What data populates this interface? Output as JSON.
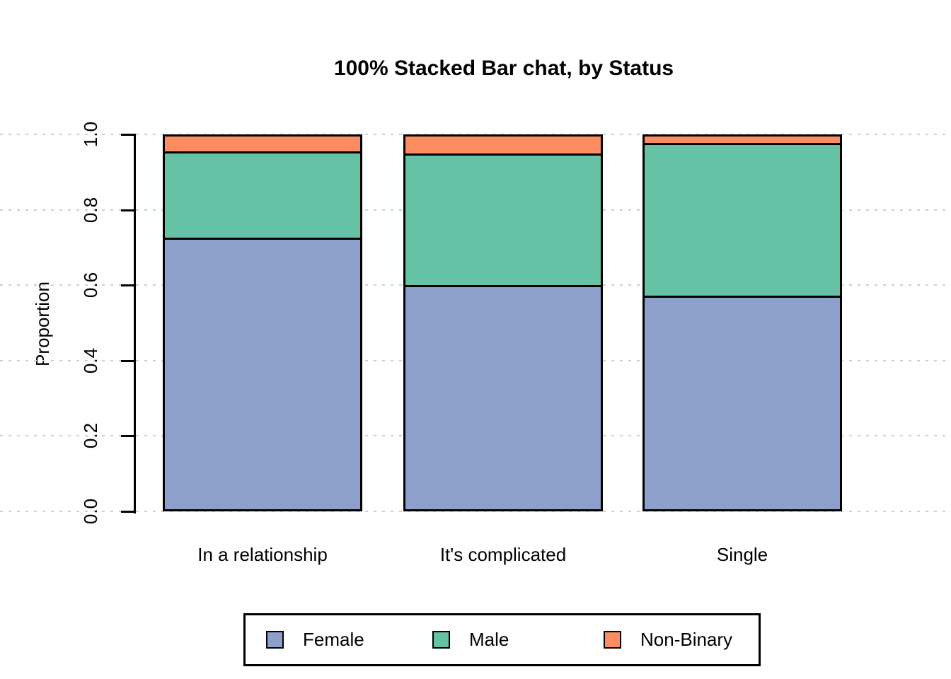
{
  "chart_data": {
    "type": "bar",
    "variant": "100% stacked",
    "title": "100% Stacked Bar chat, by Status",
    "categories": [
      "In a relationship",
      "It's complicated",
      "Single"
    ],
    "series": [
      {
        "name": "Female",
        "color": "#8DA0CB",
        "values": [
          0.727,
          0.6,
          0.572
        ]
      },
      {
        "name": "Male",
        "color": "#66C2A5",
        "values": [
          0.228,
          0.35,
          0.406
        ]
      },
      {
        "name": "Non-Binary",
        "color": "#FC8D62",
        "values": [
          0.045,
          0.05,
          0.022
        ]
      }
    ],
    "xlabel": "",
    "ylabel": "Proportion",
    "ylim": [
      0,
      1
    ],
    "yticks": [
      "0.0",
      "0.2",
      "0.4",
      "0.6",
      "0.8",
      "1.0"
    ],
    "grid": {
      "horizontal": true,
      "style": "dashed",
      "color": "#CFCFCF"
    },
    "legend": {
      "position": "bottom",
      "border": true,
      "entries": [
        "Female",
        "Male",
        "Non-Binary"
      ]
    },
    "styles": {
      "bar_border": "#000000",
      "axis": "#000000",
      "background": "#FFFFFF",
      "text": "#000000"
    }
  }
}
